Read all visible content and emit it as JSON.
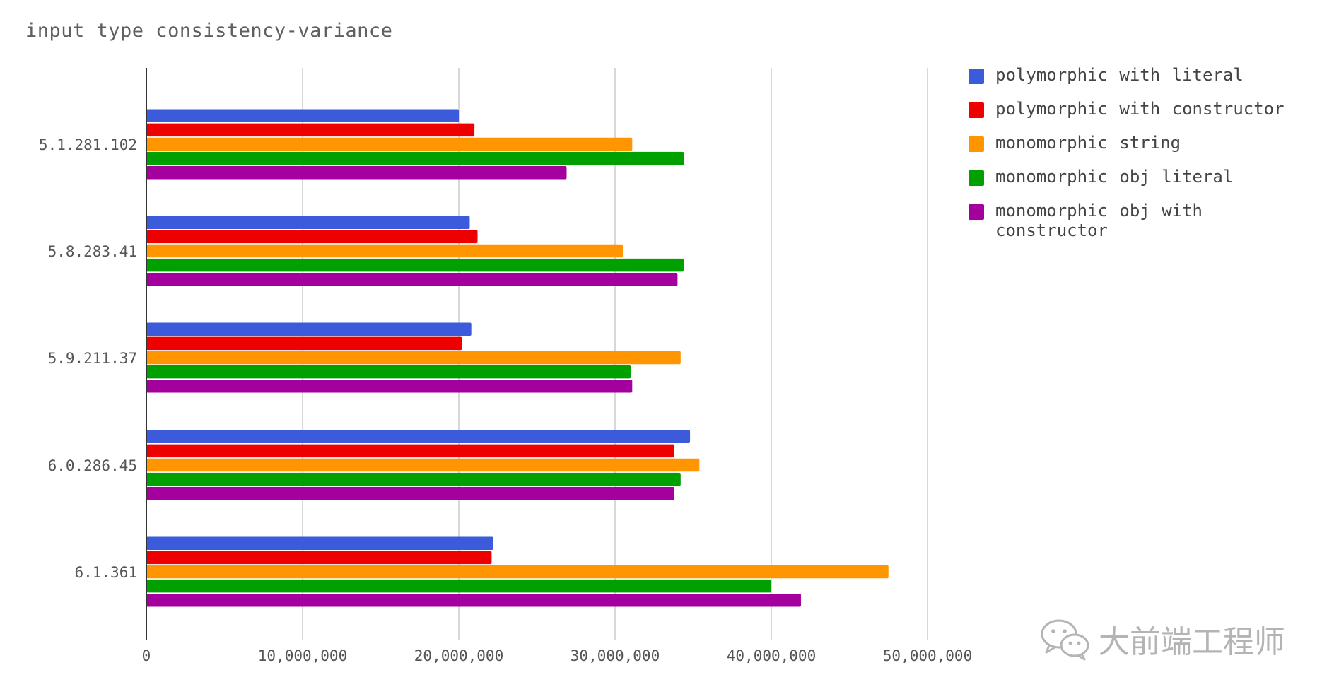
{
  "chart_data": {
    "type": "bar",
    "orientation": "horizontal",
    "title": "input type consistency-variance",
    "xlabel": "",
    "ylabel": "",
    "xlim": [
      0,
      50000000
    ],
    "x_ticks": [
      0,
      10000000,
      20000000,
      30000000,
      40000000,
      50000000
    ],
    "x_tick_labels": [
      "0",
      "10,000,000",
      "20,000,000",
      "30,000,000",
      "40,000,000",
      "50,000,000"
    ],
    "grid": true,
    "legend_position": "right",
    "categories": [
      "5.1.281.102",
      "5.8.283.41",
      "5.9.211.37",
      "6.0.286.45",
      "6.1.361"
    ],
    "series": [
      {
        "name": "polymorphic with literal",
        "color": "#3b5bdb",
        "values": [
          20000000,
          20700000,
          20800000,
          34800000,
          22200000
        ]
      },
      {
        "name": "polymorphic with constructor",
        "color": "#ee0000",
        "values": [
          21000000,
          21200000,
          20200000,
          33800000,
          22100000
        ]
      },
      {
        "name": "monomorphic string",
        "color": "#ff9500",
        "values": [
          31100000,
          30500000,
          34200000,
          35400000,
          47500000
        ]
      },
      {
        "name": "monomorphic obj literal",
        "color": "#00a000",
        "values": [
          34400000,
          34400000,
          31000000,
          34200000,
          40000000
        ]
      },
      {
        "name": "monomorphic obj with constructor",
        "color": "#a3009e",
        "values": [
          26900000,
          34000000,
          31100000,
          33800000,
          41900000
        ]
      }
    ]
  },
  "watermark": {
    "text": "大前端工程师",
    "icon": "wechat-icon"
  }
}
